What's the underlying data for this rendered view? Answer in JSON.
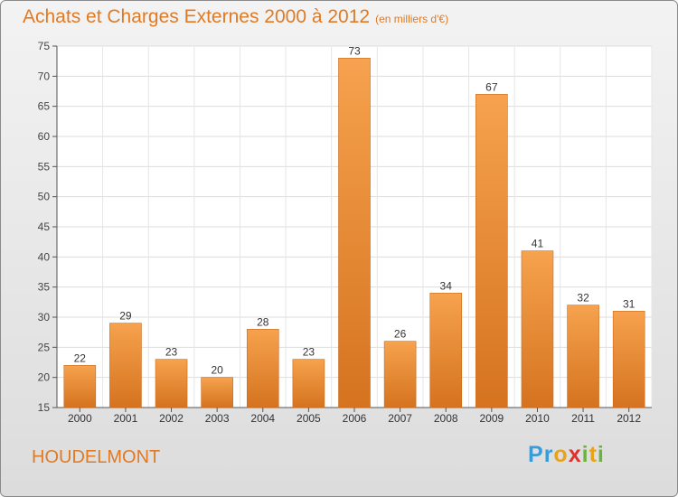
{
  "chart_data": {
    "type": "bar",
    "title": "Achats et Charges Externes 2000 à 2012",
    "unit_note": "(en milliers d'€)",
    "categories": [
      "2000",
      "2001",
      "2002",
      "2003",
      "2004",
      "2005",
      "2006",
      "2007",
      "2008",
      "2009",
      "2010",
      "2011",
      "2012"
    ],
    "values": [
      22,
      29,
      23,
      20,
      28,
      23,
      73,
      26,
      34,
      67,
      41,
      32,
      31
    ],
    "ylim": [
      15,
      75
    ],
    "yticks": [
      15,
      20,
      25,
      30,
      35,
      40,
      45,
      50,
      55,
      60,
      65,
      70,
      75
    ],
    "grid": true,
    "bar_color_light": "#f6a24e",
    "bar_color_dark": "#d5731f"
  },
  "commune": "HOUDELMONT",
  "logo": {
    "text": "Proxiti",
    "letters": [
      {
        "ch": "P",
        "color": "#3a9bd8"
      },
      {
        "ch": "r",
        "color": "#3a9bd8"
      },
      {
        "ch": "o",
        "color": "#e8a21c"
      },
      {
        "ch": "x",
        "color": "#d9332b"
      },
      {
        "ch": "i",
        "color": "#6cb33e"
      },
      {
        "ch": "t",
        "color": "#e8a21c"
      },
      {
        "ch": "i",
        "color": "#6cb33e"
      }
    ]
  }
}
